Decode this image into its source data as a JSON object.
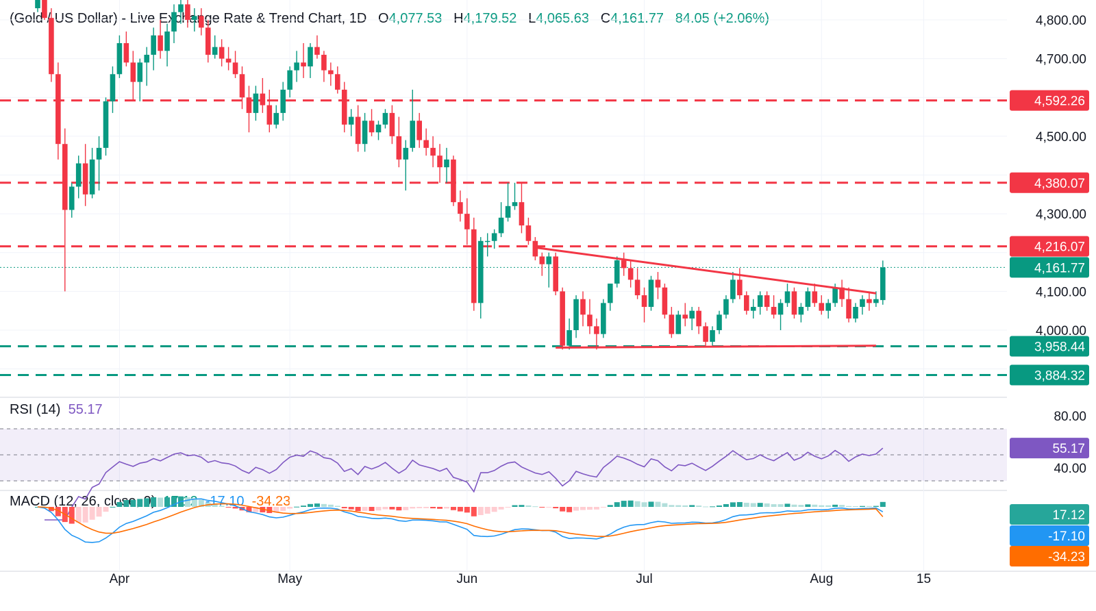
{
  "header": {
    "symbol": "(Gold / US Dollar) - Live Exchange Rate & Trend Chart, 1D",
    "o_label": "O",
    "o_value": "4,077.53",
    "h_label": "H",
    "h_value": "4,179.52",
    "l_label": "L",
    "l_value": "4,065.63",
    "c_label": "C",
    "c_value": "4,161.77",
    "change": "84.05 (+2.06%)"
  },
  "colors": {
    "up": "#089981",
    "down": "#f23645",
    "resistance": "#f23645",
    "support": "#089981",
    "trendline": "#f23645",
    "rsi": "#7e57c2",
    "macd": "#2196f3",
    "signal": "#ff6d00"
  },
  "chart_data": [
    {
      "type": "candlestick",
      "interval": "1D",
      "y_axis_ticks": [
        "4,800.00",
        "4,700.00",
        "4,500.00",
        "4,300.00",
        "4,100.00",
        "4,000.00"
      ],
      "ylim": [
        3860,
        4860
      ],
      "x_axis_labels": [
        "Apr",
        "May",
        "Jun",
        "Jul",
        "Aug",
        "15"
      ],
      "last_close": 4161.77,
      "last_close_label": "4,161.77",
      "horizontal_levels": [
        {
          "value": 4592.26,
          "label": "4,592.26",
          "kind": "resistance"
        },
        {
          "value": 4380.07,
          "label": "4,380.07",
          "kind": "resistance"
        },
        {
          "value": 4216.07,
          "label": "4,216.07",
          "kind": "resistance"
        },
        {
          "value": 3958.44,
          "label": "3,958.44",
          "kind": "support"
        },
        {
          "value": 3884.32,
          "label": "3,884.32",
          "kind": "support"
        }
      ],
      "trendlines": [
        {
          "from_index": 73,
          "from_value": 4213,
          "to_index": 123,
          "to_value": 4095
        },
        {
          "from_index": 76,
          "from_value": 3955,
          "to_index": 123,
          "to_value": 3960
        }
      ],
      "candles": [
        [
          4830,
          4870,
          4820,
          4860
        ],
        [
          4860,
          4880,
          4800,
          4805
        ],
        [
          4805,
          4830,
          4640,
          4660
        ],
        [
          4660,
          4690,
          4440,
          4480
        ],
        [
          4480,
          4520,
          4100,
          4310
        ],
        [
          4310,
          4380,
          4290,
          4370
        ],
        [
          4370,
          4450,
          4340,
          4430
        ],
        [
          4430,
          4480,
          4320,
          4350
        ],
        [
          4350,
          4470,
          4340,
          4440
        ],
        [
          4440,
          4500,
          4360,
          4470
        ],
        [
          4470,
          4600,
          4450,
          4590
        ],
        [
          4590,
          4680,
          4560,
          4660
        ],
        [
          4660,
          4760,
          4650,
          4740
        ],
        [
          4740,
          4770,
          4680,
          4690
        ],
        [
          4690,
          4720,
          4590,
          4640
        ],
        [
          4640,
          4700,
          4590,
          4690
        ],
        [
          4690,
          4730,
          4630,
          4710
        ],
        [
          4710,
          4780,
          4670,
          4760
        ],
        [
          4760,
          4800,
          4700,
          4720
        ],
        [
          4720,
          4790,
          4680,
          4770
        ],
        [
          4770,
          4840,
          4740,
          4820
        ],
        [
          4820,
          4880,
          4790,
          4840
        ],
        [
          4840,
          4860,
          4780,
          4800
        ],
        [
          4800,
          4830,
          4770,
          4810
        ],
        [
          4810,
          4830,
          4760,
          4780
        ],
        [
          4780,
          4800,
          4690,
          4710
        ],
        [
          4710,
          4760,
          4700,
          4730
        ],
        [
          4730,
          4750,
          4680,
          4700
        ],
        [
          4700,
          4730,
          4670,
          4690
        ],
        [
          4690,
          4720,
          4650,
          4660
        ],
        [
          4660,
          4680,
          4570,
          4600
        ],
        [
          4600,
          4630,
          4510,
          4560
        ],
        [
          4560,
          4630,
          4540,
          4610
        ],
        [
          4610,
          4650,
          4560,
          4580
        ],
        [
          4580,
          4620,
          4510,
          4530
        ],
        [
          4530,
          4580,
          4520,
          4560
        ],
        [
          4560,
          4640,
          4540,
          4620
        ],
        [
          4620,
          4680,
          4600,
          4670
        ],
        [
          4670,
          4720,
          4640,
          4690
        ],
        [
          4690,
          4740,
          4650,
          4680
        ],
        [
          4680,
          4740,
          4650,
          4730
        ],
        [
          4730,
          4760,
          4700,
          4710
        ],
        [
          4710,
          4720,
          4640,
          4670
        ],
        [
          4670,
          4690,
          4630,
          4660
        ],
        [
          4660,
          4680,
          4610,
          4620
        ],
        [
          4620,
          4640,
          4510,
          4530
        ],
        [
          4530,
          4570,
          4500,
          4550
        ],
        [
          4550,
          4580,
          4460,
          4480
        ],
        [
          4480,
          4560,
          4460,
          4540
        ],
        [
          4540,
          4570,
          4500,
          4510
        ],
        [
          4510,
          4540,
          4490,
          4530
        ],
        [
          4530,
          4570,
          4520,
          4560
        ],
        [
          4560,
          4580,
          4480,
          4500
        ],
        [
          4500,
          4550,
          4420,
          4440
        ],
        [
          4440,
          4490,
          4360,
          4470
        ],
        [
          4470,
          4620,
          4460,
          4540
        ],
        [
          4540,
          4560,
          4470,
          4490
        ],
        [
          4490,
          4520,
          4450,
          4470
        ],
        [
          4470,
          4500,
          4420,
          4450
        ],
        [
          4450,
          4480,
          4380,
          4420
        ],
        [
          4420,
          4470,
          4380,
          4440
        ],
        [
          4440,
          4450,
          4320,
          4330
        ],
        [
          4330,
          4360,
          4280,
          4300
        ],
        [
          4300,
          4340,
          4220,
          4260
        ],
        [
          4260,
          4290,
          4050,
          4070
        ],
        [
          4070,
          4240,
          4030,
          4230
        ],
        [
          4230,
          4250,
          4190,
          4230
        ],
        [
          4230,
          4260,
          4210,
          4250
        ],
        [
          4250,
          4330,
          4240,
          4290
        ],
        [
          4290,
          4380,
          4280,
          4320
        ],
        [
          4320,
          4380,
          4310,
          4330
        ],
        [
          4330,
          4380,
          4250,
          4270
        ],
        [
          4270,
          4290,
          4220,
          4230
        ],
        [
          4230,
          4240,
          4180,
          4190
        ],
        [
          4190,
          4200,
          4140,
          4170
        ],
        [
          4170,
          4200,
          4110,
          4190
        ],
        [
          4190,
          4200,
          4090,
          4100
        ],
        [
          4100,
          4110,
          3950,
          3960
        ],
        [
          3960,
          4030,
          3950,
          4000
        ],
        [
          4000,
          4090,
          3980,
          4080
        ],
        [
          4080,
          4100,
          4010,
          4040
        ],
        [
          4040,
          4080,
          3990,
          4010
        ],
        [
          4010,
          4030,
          3950,
          3990
        ],
        [
          3990,
          4080,
          3980,
          4070
        ],
        [
          4070,
          4120,
          4050,
          4120
        ],
        [
          4120,
          4190,
          4110,
          4180
        ],
        [
          4180,
          4200,
          4140,
          4160
        ],
        [
          4160,
          4180,
          4110,
          4130
        ],
        [
          4130,
          4160,
          4080,
          4090
        ],
        [
          4090,
          4110,
          4020,
          4060
        ],
        [
          4060,
          4140,
          4050,
          4130
        ],
        [
          4130,
          4150,
          4080,
          4110
        ],
        [
          4110,
          4120,
          4030,
          4040
        ],
        [
          4040,
          4060,
          3980,
          3990
        ],
        [
          3990,
          4050,
          3990,
          4040
        ],
        [
          4040,
          4070,
          4010,
          4030
        ],
        [
          4030,
          4060,
          4000,
          4050
        ],
        [
          4050,
          4060,
          3990,
          4010
        ],
        [
          4010,
          4020,
          3960,
          3970
        ],
        [
          3970,
          4010,
          3960,
          4000
        ],
        [
          4000,
          4050,
          3990,
          4040
        ],
        [
          4040,
          4090,
          4030,
          4080
        ],
        [
          4080,
          4150,
          4070,
          4130
        ],
        [
          4130,
          4160,
          4080,
          4090
        ],
        [
          4090,
          4100,
          4040,
          4050
        ],
        [
          4050,
          4080,
          4030,
          4060
        ],
        [
          4060,
          4100,
          4040,
          4090
        ],
        [
          4090,
          4100,
          4050,
          4060
        ],
        [
          4060,
          4090,
          4030,
          4040
        ],
        [
          4040,
          4080,
          4000,
          4070
        ],
        [
          4070,
          4120,
          4060,
          4100
        ],
        [
          4100,
          4110,
          4030,
          4040
        ],
        [
          4040,
          4070,
          4020,
          4060
        ],
        [
          4060,
          4110,
          4050,
          4100
        ],
        [
          4100,
          4120,
          4060,
          4070
        ],
        [
          4070,
          4090,
          4040,
          4050
        ],
        [
          4050,
          4080,
          4030,
          4070
        ],
        [
          4070,
          4120,
          4060,
          4110
        ],
        [
          4110,
          4130,
          4060,
          4080
        ],
        [
          4080,
          4110,
          4020,
          4030
        ],
        [
          4030,
          4070,
          4020,
          4060
        ],
        [
          4060,
          4090,
          4040,
          4080
        ],
        [
          4080,
          4100,
          4050,
          4070
        ],
        [
          4070,
          4100,
          4060,
          4080
        ],
        [
          4077.53,
          4179.52,
          4065.63,
          4161.77
        ]
      ]
    },
    {
      "type": "line",
      "name": "RSI (14)",
      "value_label": "55.17",
      "last_value": 55.17,
      "y_axis_ticks": [
        "80.00",
        "40.00"
      ],
      "ylim": [
        25,
        85
      ],
      "bands": {
        "upper": 70,
        "middle": 50,
        "lower": 30
      }
    },
    {
      "type": "bar",
      "name": "MACD (12, 26, close, 9)",
      "values_labels": {
        "histogram": "17.12",
        "macd": "-17.10",
        "signal": "-34.23"
      },
      "last": {
        "histogram": 17.12,
        "macd": -17.1,
        "signal": -34.23
      }
    }
  ]
}
